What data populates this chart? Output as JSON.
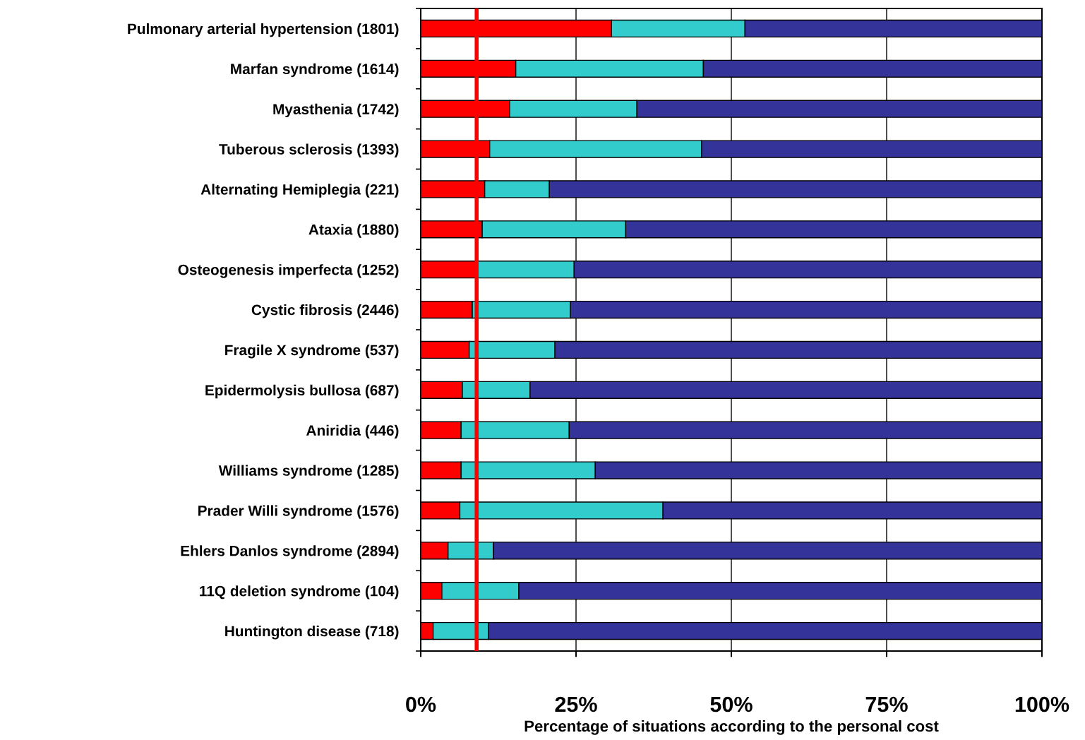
{
  "chart_data": {
    "type": "bar",
    "orientation": "horizontal",
    "stacked": true,
    "xlabel": "Percentage of situations according to the personal cost",
    "categories": [
      "Pulmonary arterial hypertension (1801)",
      "Marfan syndrome (1614)",
      "Myasthenia (1742)",
      "Tuberous sclerosis (1393)",
      "Alternating Hemiplegia (221)",
      "Ataxia (1880)",
      "Osteogenesis imperfecta (1252)",
      "Cystic fibrosis (2446)",
      "Fragile X syndrome (537)",
      "Epidermolysis bullosa (687)",
      "Aniridia (446)",
      "Williams syndrome (1285)",
      "Prader Willi syndrome (1576)",
      "Ehlers Danlos syndrome (2894)",
      "11Q deletion syndrome (104)",
      "Huntington disease (718)"
    ],
    "series": [
      {
        "color": "#ff0000",
        "values": [
          30.7,
          15.3,
          14.3,
          11.1,
          10.3,
          9.9,
          8.9,
          8.3,
          7.8,
          6.7,
          6.5,
          6.5,
          6.3,
          4.4,
          3.4,
          2.0
        ]
      },
      {
        "color": "#33cccc",
        "values": [
          21.5,
          30.2,
          20.5,
          34.1,
          10.4,
          23.1,
          15.8,
          15.8,
          13.8,
          10.9,
          17.4,
          21.6,
          32.7,
          7.3,
          12.4,
          8.9
        ]
      },
      {
        "color": "#333399",
        "values": [
          47.8,
          54.5,
          65.2,
          54.8,
          79.3,
          67.0,
          75.3,
          75.9,
          78.4,
          82.4,
          76.1,
          71.9,
          61.0,
          88.3,
          84.2,
          89.1
        ]
      }
    ],
    "xlim": [
      0,
      100
    ],
    "xticks": [
      {
        "value": 0,
        "label": "0%"
      },
      {
        "value": 25,
        "label": "25%"
      },
      {
        "value": 50,
        "label": "50%"
      },
      {
        "value": 75,
        "label": "75%"
      },
      {
        "value": 100,
        "label": "100%"
      }
    ],
    "grid": "x",
    "legend": false,
    "ref_lines": [
      {
        "axis": "x",
        "value": 9.0,
        "color": "#ff0000",
        "line_style": "solid"
      }
    ]
  }
}
